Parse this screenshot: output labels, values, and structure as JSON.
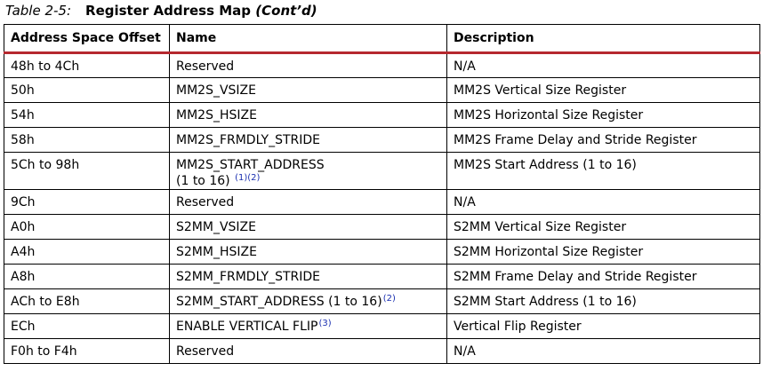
{
  "caption": {
    "label": "Table 2-5:",
    "title": "Register Address Map ",
    "suffix": "(Cont’d)"
  },
  "table": {
    "headers": [
      "Address Space Offset",
      "Name",
      "Description"
    ],
    "rows": [
      {
        "offset": "48h to 4Ch",
        "name": "Reserved",
        "name_line2": "",
        "note": "",
        "description": "N/A"
      },
      {
        "offset": "50h",
        "name": "MM2S_VSIZE",
        "name_line2": "",
        "note": "",
        "description": "MM2S Vertical Size Register"
      },
      {
        "offset": "54h",
        "name": "MM2S_HSIZE",
        "name_line2": "",
        "note": "",
        "description": "MM2S Horizontal Size Register"
      },
      {
        "offset": "58h",
        "name": "MM2S_FRMDLY_STRIDE",
        "name_line2": "",
        "note": "",
        "description": "MM2S Frame Delay and Stride Register"
      },
      {
        "offset": "5Ch to 98h",
        "name": "MM2S_START_ADDRESS",
        "name_line2": "(1 to 16) ",
        "note": "(1)(2)",
        "description": "MM2S Start Address (1 to 16)"
      },
      {
        "offset": "9Ch",
        "name": "Reserved",
        "name_line2": "",
        "note": "",
        "description": "N/A"
      },
      {
        "offset": "A0h",
        "name": "S2MM_VSIZE",
        "name_line2": "",
        "note": "",
        "description": "S2MM Vertical Size Register"
      },
      {
        "offset": "A4h",
        "name": "S2MM_HSIZE",
        "name_line2": "",
        "note": "",
        "description": "S2MM Horizontal Size Register"
      },
      {
        "offset": "A8h",
        "name": "S2MM_FRMDLY_STRIDE",
        "name_line2": "",
        "note": "",
        "description": "S2MM Frame Delay and Stride Register"
      },
      {
        "offset": "ACh to E8h",
        "name": "S2MM_START_ADDRESS (1 to 16)",
        "name_line2": "",
        "note": "(2)",
        "description": "S2MM Start Address (1 to 16)"
      },
      {
        "offset": "ECh",
        "name": "ENABLE VERTICAL FLIP",
        "name_line2": "",
        "note": "(3)",
        "description": "Vertical Flip Register"
      },
      {
        "offset": "F0h to F4h",
        "name": "Reserved",
        "name_line2": "",
        "note": "",
        "description": "N/A"
      }
    ]
  },
  "colors": {
    "header_rule": "#b5282e",
    "footnote_link": "#1a2fb0"
  }
}
